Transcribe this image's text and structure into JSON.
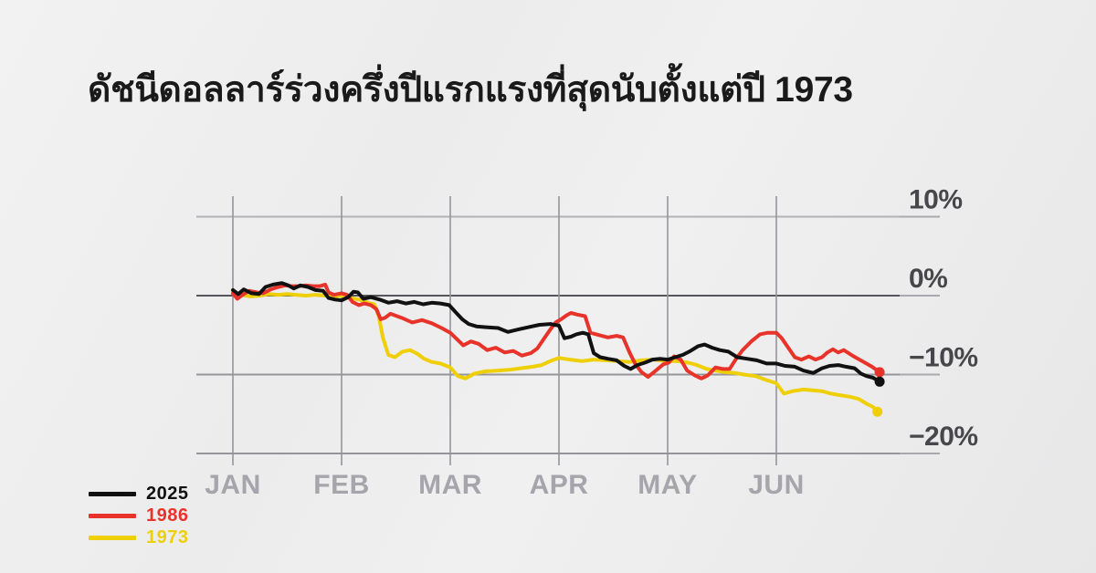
{
  "title": "ดัชนีดอลลาร์ร่วงครึ่งปีแรกแรงที่สุดนับตั้งแต่ปี 1973",
  "chart_data": {
    "type": "line",
    "description": "US dollar index, year-to-date percent change over the first half of the year, comparing 2025 with 1986 and 1973",
    "x_ticks": [
      "JAN",
      "FEB",
      "MAR",
      "APR",
      "MAY",
      "JUN"
    ],
    "xlim_months": [
      0,
      6
    ],
    "ylim": [
      -20,
      10
    ],
    "y_ticks": [
      {
        "value": 10,
        "label": "10%"
      },
      {
        "value": 0,
        "label": "0%"
      },
      {
        "value": -10,
        "label": "−10%"
      },
      {
        "value": -20,
        "label": "−20%"
      }
    ],
    "grid": true,
    "legend_position": "bottom-left",
    "series": [
      {
        "name": "2025",
        "color": "#111111",
        "end_dot": true,
        "points": [
          [
            0.0,
            0.7
          ],
          [
            0.05,
            0.2
          ],
          [
            0.1,
            0.8
          ],
          [
            0.17,
            0.3
          ],
          [
            0.24,
            0.2
          ],
          [
            0.3,
            1.1
          ],
          [
            0.37,
            1.4
          ],
          [
            0.45,
            1.6
          ],
          [
            0.51,
            1.3
          ],
          [
            0.56,
            0.9
          ],
          [
            0.62,
            1.3
          ],
          [
            0.69,
            1.1
          ],
          [
            0.76,
            0.7
          ],
          [
            0.83,
            0.6
          ],
          [
            0.88,
            -0.3
          ],
          [
            0.94,
            -0.5
          ],
          [
            1.0,
            -0.6
          ],
          [
            1.06,
            -0.2
          ],
          [
            1.11,
            0.5
          ],
          [
            1.15,
            0.4
          ],
          [
            1.2,
            -0.4
          ],
          [
            1.27,
            -0.2
          ],
          [
            1.35,
            -0.5
          ],
          [
            1.43,
            -0.9
          ],
          [
            1.51,
            -0.7
          ],
          [
            1.59,
            -1.0
          ],
          [
            1.67,
            -0.8
          ],
          [
            1.75,
            -1.1
          ],
          [
            1.83,
            -0.9
          ],
          [
            1.91,
            -1.0
          ],
          [
            1.99,
            -1.2
          ],
          [
            2.05,
            -2.1
          ],
          [
            2.11,
            -3.0
          ],
          [
            2.17,
            -3.6
          ],
          [
            2.24,
            -3.9
          ],
          [
            2.33,
            -4.0
          ],
          [
            2.44,
            -4.1
          ],
          [
            2.53,
            -4.6
          ],
          [
            2.62,
            -4.3
          ],
          [
            2.72,
            -4.0
          ],
          [
            2.82,
            -3.7
          ],
          [
            2.92,
            -3.6
          ],
          [
            3.0,
            -3.8
          ],
          [
            3.05,
            -5.4
          ],
          [
            3.11,
            -5.2
          ],
          [
            3.16,
            -4.9
          ],
          [
            3.22,
            -4.7
          ],
          [
            3.27,
            -4.9
          ],
          [
            3.32,
            -7.3
          ],
          [
            3.38,
            -7.8
          ],
          [
            3.45,
            -8.0
          ],
          [
            3.53,
            -8.2
          ],
          [
            3.6,
            -8.9
          ],
          [
            3.66,
            -9.3
          ],
          [
            3.72,
            -8.8
          ],
          [
            3.79,
            -8.5
          ],
          [
            3.86,
            -8.1
          ],
          [
            3.93,
            -8.0
          ],
          [
            4.0,
            -8.1
          ],
          [
            4.07,
            -7.8
          ],
          [
            4.14,
            -7.5
          ],
          [
            4.21,
            -7.0
          ],
          [
            4.28,
            -6.4
          ],
          [
            4.34,
            -6.2
          ],
          [
            4.41,
            -6.6
          ],
          [
            4.48,
            -6.9
          ],
          [
            4.56,
            -7.1
          ],
          [
            4.64,
            -7.8
          ],
          [
            4.73,
            -8.0
          ],
          [
            4.82,
            -8.2
          ],
          [
            4.91,
            -8.6
          ],
          [
            5.0,
            -8.6
          ],
          [
            5.08,
            -8.9
          ],
          [
            5.17,
            -9.0
          ],
          [
            5.25,
            -9.5
          ],
          [
            5.34,
            -9.8
          ],
          [
            5.42,
            -9.2
          ],
          [
            5.49,
            -8.9
          ],
          [
            5.57,
            -8.8
          ],
          [
            5.64,
            -9.0
          ],
          [
            5.72,
            -9.2
          ],
          [
            5.78,
            -9.9
          ],
          [
            5.83,
            -10.2
          ],
          [
            5.89,
            -10.4
          ],
          [
            5.95,
            -10.9
          ]
        ]
      },
      {
        "name": "1986",
        "color": "#e8332b",
        "end_dot": true,
        "points": [
          [
            0.0,
            0.3
          ],
          [
            0.04,
            -0.4
          ],
          [
            0.1,
            0.2
          ],
          [
            0.15,
            0.6
          ],
          [
            0.22,
            0.4
          ],
          [
            0.28,
            0.3
          ],
          [
            0.35,
            0.8
          ],
          [
            0.42,
            1.1
          ],
          [
            0.48,
            1.3
          ],
          [
            0.54,
            1.2
          ],
          [
            0.61,
            1.2
          ],
          [
            0.67,
            1.3
          ],
          [
            0.74,
            1.2
          ],
          [
            0.8,
            1.2
          ],
          [
            0.85,
            1.4
          ],
          [
            0.88,
            0.4
          ],
          [
            0.93,
            0.1
          ],
          [
            1.0,
            0.3
          ],
          [
            1.05,
            0.1
          ],
          [
            1.1,
            -0.8
          ],
          [
            1.16,
            -1.2
          ],
          [
            1.21,
            -1.0
          ],
          [
            1.27,
            -1.2
          ],
          [
            1.32,
            -1.7
          ],
          [
            1.36,
            -3.0
          ],
          [
            1.4,
            -2.8
          ],
          [
            1.45,
            -2.3
          ],
          [
            1.55,
            -2.8
          ],
          [
            1.65,
            -3.4
          ],
          [
            1.74,
            -3.1
          ],
          [
            1.83,
            -3.5
          ],
          [
            1.92,
            -4.1
          ],
          [
            2.0,
            -4.7
          ],
          [
            2.06,
            -5.5
          ],
          [
            2.12,
            -6.3
          ],
          [
            2.19,
            -5.8
          ],
          [
            2.26,
            -6.1
          ],
          [
            2.34,
            -6.9
          ],
          [
            2.42,
            -6.6
          ],
          [
            2.5,
            -7.2
          ],
          [
            2.58,
            -7.0
          ],
          [
            2.66,
            -7.6
          ],
          [
            2.74,
            -7.3
          ],
          [
            2.8,
            -6.7
          ],
          [
            2.86,
            -5.5
          ],
          [
            2.92,
            -4.3
          ],
          [
            2.97,
            -3.4
          ],
          [
            3.02,
            -3.0
          ],
          [
            3.07,
            -2.5
          ],
          [
            3.11,
            -2.2
          ],
          [
            3.17,
            -2.4
          ],
          [
            3.24,
            -2.6
          ],
          [
            3.29,
            -4.7
          ],
          [
            3.37,
            -5.0
          ],
          [
            3.45,
            -5.3
          ],
          [
            3.53,
            -5.1
          ],
          [
            3.59,
            -5.3
          ],
          [
            3.65,
            -7.2
          ],
          [
            3.7,
            -8.6
          ],
          [
            3.76,
            -9.7
          ],
          [
            3.82,
            -10.3
          ],
          [
            3.9,
            -9.4
          ],
          [
            3.96,
            -8.7
          ],
          [
            4.01,
            -8.5
          ],
          [
            4.06,
            -7.7
          ],
          [
            4.12,
            -8.1
          ],
          [
            4.18,
            -9.5
          ],
          [
            4.25,
            -10.1
          ],
          [
            4.31,
            -10.5
          ],
          [
            4.37,
            -10.1
          ],
          [
            4.44,
            -9.1
          ],
          [
            4.51,
            -9.3
          ],
          [
            4.57,
            -9.3
          ],
          [
            4.63,
            -8.0
          ],
          [
            4.69,
            -6.9
          ],
          [
            4.77,
            -5.8
          ],
          [
            4.85,
            -4.9
          ],
          [
            4.92,
            -4.7
          ],
          [
            5.0,
            -4.7
          ],
          [
            5.05,
            -5.4
          ],
          [
            5.11,
            -6.6
          ],
          [
            5.17,
            -7.8
          ],
          [
            5.23,
            -8.1
          ],
          [
            5.3,
            -7.7
          ],
          [
            5.36,
            -8.1
          ],
          [
            5.42,
            -7.8
          ],
          [
            5.47,
            -7.2
          ],
          [
            5.52,
            -6.8
          ],
          [
            5.57,
            -7.2
          ],
          [
            5.62,
            -6.9
          ],
          [
            5.7,
            -7.6
          ],
          [
            5.79,
            -8.3
          ],
          [
            5.88,
            -9.0
          ],
          [
            5.95,
            -9.7
          ]
        ]
      },
      {
        "name": "1973",
        "color": "#eecf08",
        "end_dot": true,
        "points": [
          [
            0.0,
            0.5
          ],
          [
            0.08,
            0.1
          ],
          [
            0.16,
            -0.1
          ],
          [
            0.25,
            0.0
          ],
          [
            0.33,
            0.2
          ],
          [
            0.42,
            0.1
          ],
          [
            0.5,
            0.2
          ],
          [
            0.58,
            0.1
          ],
          [
            0.67,
            0.0
          ],
          [
            0.76,
            0.1
          ],
          [
            0.85,
            0.0
          ],
          [
            0.93,
            -0.1
          ],
          [
            1.0,
            0.0
          ],
          [
            1.08,
            -0.3
          ],
          [
            1.16,
            -0.5
          ],
          [
            1.24,
            -0.9
          ],
          [
            1.3,
            -1.1
          ],
          [
            1.34,
            -2.5
          ],
          [
            1.38,
            -5.3
          ],
          [
            1.43,
            -7.5
          ],
          [
            1.49,
            -7.8
          ],
          [
            1.56,
            -7.1
          ],
          [
            1.63,
            -6.9
          ],
          [
            1.7,
            -7.4
          ],
          [
            1.76,
            -8.0
          ],
          [
            1.83,
            -8.4
          ],
          [
            1.91,
            -8.6
          ],
          [
            2.0,
            -9.1
          ],
          [
            2.07,
            -10.2
          ],
          [
            2.14,
            -10.5
          ],
          [
            2.22,
            -9.9
          ],
          [
            2.32,
            -9.6
          ],
          [
            2.43,
            -9.5
          ],
          [
            2.54,
            -9.4
          ],
          [
            2.65,
            -9.2
          ],
          [
            2.76,
            -9.0
          ],
          [
            2.84,
            -8.8
          ],
          [
            2.92,
            -8.3
          ],
          [
            3.0,
            -7.9
          ],
          [
            3.1,
            -8.1
          ],
          [
            3.21,
            -8.3
          ],
          [
            3.32,
            -8.1
          ],
          [
            3.43,
            -8.2
          ],
          [
            3.54,
            -8.3
          ],
          [
            3.65,
            -8.4
          ],
          [
            3.76,
            -8.2
          ],
          [
            3.88,
            -8.1
          ],
          [
            4.0,
            -8.3
          ],
          [
            4.1,
            -8.3
          ],
          [
            4.19,
            -8.5
          ],
          [
            4.27,
            -8.8
          ],
          [
            4.36,
            -9.3
          ],
          [
            4.44,
            -9.5
          ],
          [
            4.53,
            -9.7
          ],
          [
            4.62,
            -9.8
          ],
          [
            4.7,
            -10.0
          ],
          [
            4.81,
            -10.2
          ],
          [
            4.91,
            -10.7
          ],
          [
            5.0,
            -11.1
          ],
          [
            5.07,
            -12.4
          ],
          [
            5.15,
            -12.1
          ],
          [
            5.25,
            -11.9
          ],
          [
            5.33,
            -12.0
          ],
          [
            5.42,
            -12.1
          ],
          [
            5.5,
            -12.4
          ],
          [
            5.58,
            -12.6
          ],
          [
            5.67,
            -12.8
          ],
          [
            5.76,
            -13.1
          ],
          [
            5.83,
            -13.7
          ],
          [
            5.89,
            -14.1
          ],
          [
            5.93,
            -14.7
          ]
        ]
      }
    ]
  },
  "colors": {
    "background_start": "#f2f2f2",
    "background_end": "#e6e6e7",
    "gridline": "#95959a",
    "gridline_zero": "#55565a",
    "gridline_light": "#b2b2b6",
    "label_underline": "#a9a9ad",
    "tick_label": "#47474b",
    "month_label": "#a5a5ab",
    "title": "#1a1a1a"
  }
}
